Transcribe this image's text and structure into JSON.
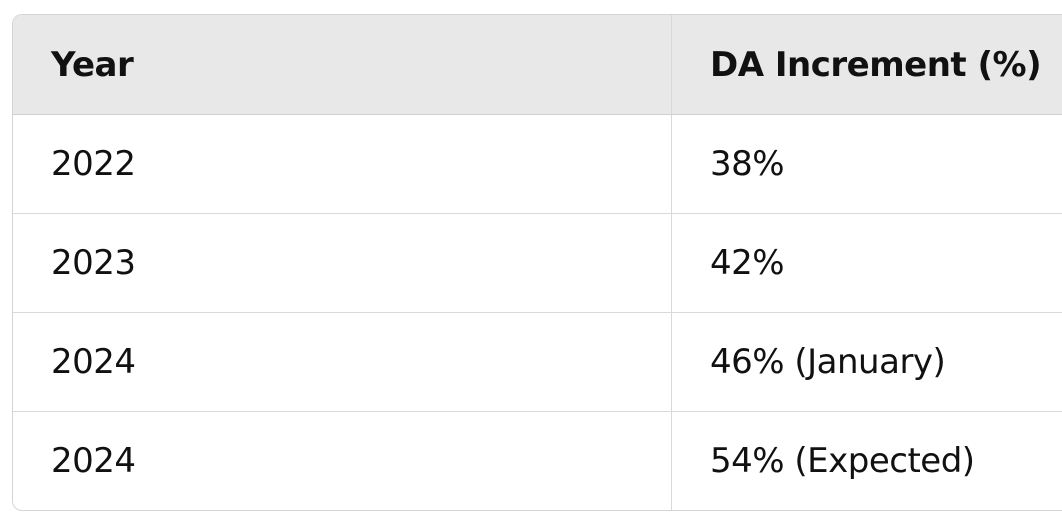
{
  "table": {
    "headers": [
      "Year",
      "DA Increment (%)"
    ],
    "rows": [
      [
        "2022",
        "38%"
      ],
      [
        "2023",
        "42%"
      ],
      [
        "2024",
        "46% (January)"
      ],
      [
        "2024",
        "54% (Expected)"
      ]
    ]
  }
}
